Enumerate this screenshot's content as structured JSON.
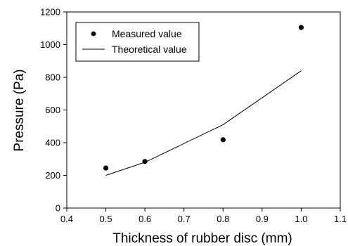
{
  "chart_data": {
    "type": "scatter",
    "xlabel": "Thickness of rubber disc (mm)",
    "ylabel": "Pressure (Pa)",
    "xlim": [
      0.4,
      1.1
    ],
    "ylim": [
      0,
      1200
    ],
    "xticks": [
      0.4,
      0.5,
      0.6,
      0.7,
      0.8,
      0.9,
      1.0,
      1.1
    ],
    "xtick_labels": [
      "0.4",
      "0.5",
      "0.6",
      "0.7",
      "0.8",
      "0.9",
      "1.0",
      "1.1"
    ],
    "yticks": [
      0,
      200,
      400,
      600,
      800,
      1000,
      1200
    ],
    "ytick_labels": [
      "0",
      "200",
      "400",
      "600",
      "800",
      "1000",
      "1200"
    ],
    "grid": false,
    "legend_position": "top-left",
    "series": [
      {
        "name": "Measured value",
        "kind": "scatter",
        "marker": "filled-circle",
        "color": "#000000",
        "x": [
          0.5,
          0.6,
          0.8,
          1.0
        ],
        "y": [
          245,
          285,
          418,
          1105
        ]
      },
      {
        "name": "Theoretical value",
        "kind": "line",
        "color": "#000000",
        "x": [
          0.5,
          0.6,
          0.8,
          1.0
        ],
        "y": [
          200,
          280,
          510,
          840
        ]
      }
    ]
  }
}
